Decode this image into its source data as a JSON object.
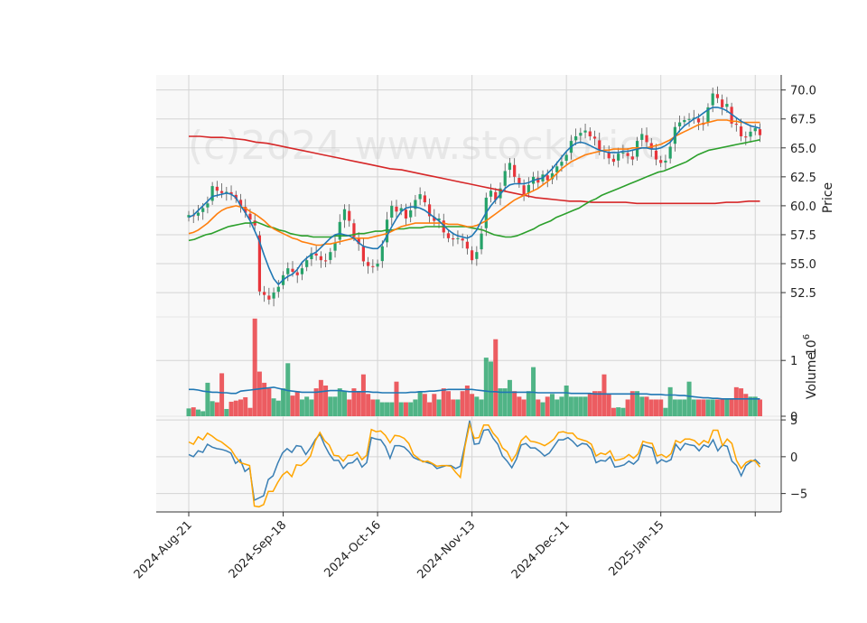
{
  "watermark": "(c)2024 www.stockprice",
  "chart_data": [
    {
      "type": "candlestick",
      "panel": "price",
      "ylabel": "Price",
      "ylim": [
        50.4,
        71.3
      ],
      "yticks": [
        52.5,
        55.0,
        57.5,
        60.0,
        62.5,
        65.0,
        67.5,
        70.0
      ],
      "ytick_labels": [
        "52.5",
        "55.0",
        "57.5",
        "60.0",
        "62.5",
        "65.0",
        "67.5",
        "70.0"
      ],
      "x_range": [
        -7,
        121
      ],
      "xtick_labels": [
        "2024-Aug-21",
        "2024-Sep-18",
        "2024-Oct-16",
        "2024-Nov-13",
        "2024-Dec-11",
        "2025-Jan-15",
        ""
      ],
      "xtick_positions": [
        0,
        20,
        40,
        60,
        80,
        100,
        120
      ],
      "grid": true,
      "colors": {
        "up": "#26a269",
        "down": "#e8353b",
        "ma_fast": "#1f77b4",
        "ma_mid": "#ff7f0e",
        "ma_slow": "#2ca02c",
        "ma_long": "#d62728"
      },
      "close": [
        59.2,
        59.1,
        59.4,
        59.8,
        60.2,
        61.7,
        61.3,
        61.1,
        61.2,
        61.0,
        60.6,
        60.0,
        59.4,
        58.8,
        58.3,
        52.6,
        52.3,
        51.9,
        52.5,
        53.0,
        54.0,
        54.6,
        54.3,
        54.0,
        54.6,
        55.3,
        55.9,
        55.7,
        55.3,
        55.2,
        56.0,
        56.8,
        58.6,
        59.7,
        58.7,
        57.3,
        56.7,
        55.2,
        54.8,
        54.7,
        55.0,
        56.5,
        58.8,
        60.0,
        59.5,
        59.8,
        58.9,
        59.6,
        60.5,
        61.0,
        60.3,
        59.1,
        58.7,
        58.9,
        57.7,
        57.2,
        57.1,
        57.2,
        57.0,
        56.3,
        55.3,
        56.0,
        57.6,
        60.7,
        61.3,
        60.5,
        61.5,
        63.0,
        63.7,
        62.5,
        61.9,
        61.0,
        61.8,
        62.5,
        62.0,
        62.7,
        62.2,
        62.8,
        63.4,
        63.8,
        64.4,
        65.6,
        66.0,
        66.3,
        66.5,
        66.0,
        65.8,
        64.8,
        64.7,
        64.1,
        63.8,
        64.5,
        64.6,
        64.3,
        64.0,
        65.6,
        66.2,
        65.5,
        64.9,
        64.0,
        63.7,
        63.9,
        65.1,
        66.8,
        67.2,
        67.4,
        67.5,
        67.6,
        67.2,
        67.0,
        68.5,
        69.7,
        69.3,
        68.5,
        68.8,
        67.1,
        67.0,
        66.0,
        65.9,
        66.4,
        66.7,
        66.1
      ],
      "ma_fast": [
        59.0,
        59.2,
        59.6,
        60.0,
        60.4,
        60.8,
        60.9,
        61.0,
        61.1,
        61.0,
        60.7,
        60.0,
        59.4,
        58.7,
        57.8,
        56.9,
        55.7,
        54.6,
        53.7,
        53.2,
        53.6,
        53.9,
        54.1,
        54.5,
        55.1,
        55.5,
        55.8,
        56.0,
        56.4,
        56.8,
        57.2,
        57.5,
        57.6,
        57.5,
        57.4,
        57.2,
        56.8,
        56.5,
        56.4,
        56.3,
        56.3,
        56.7,
        57.4,
        58.2,
        58.9,
        59.5,
        59.8,
        59.9,
        59.9,
        59.8,
        59.6,
        59.3,
        59.0,
        58.7,
        58.3,
        57.9,
        57.6,
        57.4,
        57.3,
        57.2,
        57.4,
        57.9,
        58.7,
        59.4,
        60.0,
        60.5,
        61.0,
        61.5,
        61.8,
        61.9,
        61.9,
        61.9,
        62.0,
        62.2,
        62.3,
        62.4,
        62.8,
        63.2,
        63.7,
        64.2,
        64.7,
        65.1,
        65.4,
        65.5,
        65.4,
        65.2,
        65.0,
        64.8,
        64.7,
        64.6,
        64.6,
        64.6,
        64.7,
        64.7,
        64.8,
        64.9,
        65.0,
        65.0,
        64.9,
        64.9,
        65.0,
        65.2,
        65.5,
        66.0,
        66.5,
        66.9,
        67.2,
        67.5,
        67.7,
        68.0,
        68.3,
        68.5,
        68.5,
        68.4,
        68.2,
        67.9,
        67.6,
        67.3,
        67.1,
        66.9,
        66.8,
        66.7
      ],
      "ma_mid": [
        57.6,
        57.7,
        57.9,
        58.2,
        58.5,
        58.9,
        59.3,
        59.6,
        59.8,
        59.9,
        60.0,
        59.9,
        59.8,
        59.5,
        59.3,
        59.0,
        58.7,
        58.3,
        58.0,
        57.8,
        57.6,
        57.4,
        57.2,
        57.1,
        56.9,
        56.8,
        56.7,
        56.6,
        56.6,
        56.7,
        56.7,
        56.8,
        56.9,
        57.0,
        57.1,
        57.2,
        57.2,
        57.2,
        57.2,
        57.3,
        57.4,
        57.5,
        57.6,
        57.8,
        58.0,
        58.2,
        58.3,
        58.4,
        58.5,
        58.5,
        58.5,
        58.5,
        58.5,
        58.5,
        58.5,
        58.4,
        58.4,
        58.4,
        58.3,
        58.2,
        58.2,
        58.3,
        58.5,
        58.7,
        59.0,
        59.3,
        59.6,
        59.9,
        60.2,
        60.5,
        60.7,
        60.9,
        61.1,
        61.3,
        61.5,
        61.8,
        62.1,
        62.4,
        62.8,
        63.2,
        63.5,
        63.8,
        64.0,
        64.2,
        64.4,
        64.5,
        64.6,
        64.7,
        64.8,
        64.8,
        64.9,
        64.9,
        64.9,
        64.9,
        65.0,
        65.0,
        65.0,
        65.0,
        65.1,
        65.2,
        65.3,
        65.5,
        65.7,
        66.0,
        66.2,
        66.4,
        66.6,
        66.8,
        67.0,
        67.1,
        67.2,
        67.3,
        67.4,
        67.4,
        67.4,
        67.3,
        67.3,
        67.2,
        67.2,
        67.2,
        67.2,
        67.2
      ],
      "ma_slow": [
        57.0,
        57.1,
        57.3,
        57.5,
        57.6,
        57.8,
        58.0,
        58.2,
        58.3,
        58.4,
        58.5,
        58.5,
        58.6,
        58.4,
        58.2,
        58.1,
        57.9,
        57.8,
        57.6,
        57.5,
        57.4,
        57.4,
        57.3,
        57.3,
        57.3,
        57.3,
        57.4,
        57.4,
        57.4,
        57.5,
        57.6,
        57.6,
        57.7,
        57.8,
        57.8,
        57.9,
        57.9,
        58.0,
        58.0,
        58.1,
        58.1,
        58.1,
        58.2,
        58.2,
        58.2,
        58.2,
        58.2,
        58.2,
        58.2,
        58.2,
        58.1,
        58.0,
        57.9,
        57.7,
        57.5,
        57.4,
        57.3,
        57.3,
        57.4,
        57.6,
        57.8,
        58.0,
        58.3,
        58.5,
        58.7,
        59.0,
        59.2,
        59.4,
        59.6,
        59.8,
        60.1,
        60.4,
        60.6,
        60.9,
        61.1,
        61.3,
        61.5,
        61.7,
        61.9,
        62.1,
        62.3,
        62.5,
        62.7,
        62.9,
        63.0,
        63.2,
        63.4,
        63.6,
        63.8,
        64.1,
        64.4,
        64.6,
        64.8,
        64.9,
        65.0,
        65.1,
        65.2,
        65.3,
        65.4,
        65.5,
        65.6,
        65.7
      ],
      "ma_long": [
        66.0,
        66.0,
        65.9,
        65.9,
        65.8,
        65.7,
        65.5,
        65.4,
        65.2,
        65.0,
        64.8,
        64.6,
        64.4,
        64.2,
        64.0,
        63.8,
        63.6,
        63.4,
        63.2,
        63.1,
        62.9,
        62.7,
        62.5,
        62.3,
        62.1,
        61.9,
        61.7,
        61.5,
        61.3,
        61.1,
        60.9,
        60.7,
        60.6,
        60.5,
        60.4,
        60.4,
        60.3,
        60.3,
        60.3,
        60.3,
        60.2,
        60.2,
        60.2,
        60.2,
        60.2,
        60.2,
        60.2,
        60.2,
        60.3,
        60.3,
        60.4,
        60.4
      ]
    },
    {
      "type": "bar",
      "panel": "volume",
      "ylabel": "Volume",
      "scale_label": "10^6",
      "ylim": [
        0,
        1.78
      ],
      "yticks": [
        0,
        1
      ],
      "ytick_labels": [
        "0",
        "1"
      ],
      "volume": [
        0.14,
        0.16,
        0.12,
        0.09,
        0.6,
        0.27,
        0.25,
        0.77,
        0.13,
        0.26,
        0.28,
        0.3,
        0.34,
        0.15,
        1.75,
        0.8,
        0.6,
        0.5,
        0.32,
        0.28,
        0.5,
        0.95,
        0.37,
        0.45,
        0.3,
        0.35,
        0.3,
        0.5,
        0.65,
        0.55,
        0.35,
        0.35,
        0.5,
        0.45,
        0.3,
        0.5,
        0.45,
        0.75,
        0.4,
        0.3,
        0.3,
        0.25,
        0.25,
        0.25,
        0.62,
        0.25,
        0.25,
        0.25,
        0.3,
        0.45,
        0.4,
        0.25,
        0.4,
        0.3,
        0.5,
        0.45,
        0.3,
        0.3,
        0.45,
        0.55,
        0.4,
        0.35,
        0.3,
        1.05,
        0.98,
        1.38,
        0.5,
        0.5,
        0.65,
        0.45,
        0.35,
        0.3,
        0.45,
        0.88,
        0.3,
        0.25,
        0.35,
        0.4,
        0.3,
        0.35,
        0.55,
        0.35,
        0.35,
        0.35,
        0.35,
        0.4,
        0.45,
        0.45,
        0.75,
        0.4,
        0.15,
        0.16,
        0.15,
        0.3,
        0.45,
        0.45,
        0.35,
        0.35,
        0.3,
        0.3,
        0.3,
        0.15,
        0.52,
        0.3,
        0.3,
        0.3,
        0.62,
        0.3,
        0.3,
        0.3,
        0.3,
        0.3,
        0.3,
        0.3,
        0.3,
        0.3,
        0.52,
        0.5,
        0.4,
        0.35,
        0.35,
        0.3
      ],
      "volume_avg": [
        0.48,
        0.48,
        0.47,
        0.45,
        0.44,
        0.43,
        0.43,
        0.42,
        0.42,
        0.41,
        0.41,
        0.45,
        0.46,
        0.47,
        0.48,
        0.49,
        0.5,
        0.51,
        0.52,
        0.5,
        0.48,
        0.46,
        0.45,
        0.44,
        0.43,
        0.43,
        0.43,
        0.43,
        0.44,
        0.45,
        0.46,
        0.46,
        0.46,
        0.45,
        0.44,
        0.44,
        0.44,
        0.44,
        0.44,
        0.43,
        0.43,
        0.42,
        0.42,
        0.42,
        0.42,
        0.42,
        0.42,
        0.43,
        0.43,
        0.44,
        0.44,
        0.45,
        0.45,
        0.46,
        0.47,
        0.48,
        0.48,
        0.48,
        0.48,
        0.48,
        0.48,
        0.47,
        0.46,
        0.45,
        0.44,
        0.44,
        0.43,
        0.43,
        0.43,
        0.43,
        0.43,
        0.43,
        0.43,
        0.43,
        0.42,
        0.42,
        0.42,
        0.42,
        0.42,
        0.42,
        0.42,
        0.41,
        0.41,
        0.41,
        0.41,
        0.41,
        0.4,
        0.4,
        0.4,
        0.4,
        0.4,
        0.4,
        0.4,
        0.4,
        0.4,
        0.4,
        0.4,
        0.4,
        0.39,
        0.39,
        0.39,
        0.38,
        0.38,
        0.38,
        0.37,
        0.37,
        0.36,
        0.35,
        0.34,
        0.33,
        0.33,
        0.32,
        0.32,
        0.31,
        0.31,
        0.31,
        0.31,
        0.31,
        0.31,
        0.31,
        0.31,
        0.31
      ],
      "colors": {
        "up": "#26a269",
        "down": "#e8353b",
        "avg": "#1f77b4"
      }
    },
    {
      "type": "line",
      "panel": "oscillator",
      "ylim": [
        -7.5,
        5.5
      ],
      "yticks": [
        -5,
        0,
        5
      ],
      "ytick_labels": [
        "−5",
        "0",
        "5"
      ],
      "series": [
        {
          "color": "#3a7fb4",
          "values": [
            0.3,
            0.0,
            0.8,
            0.6,
            1.7,
            1.3,
            1.1,
            1.0,
            0.8,
            0.5,
            -0.9,
            -0.4,
            -2.0,
            -1.5,
            -5.9,
            -5.6,
            -5.3,
            -3.1,
            -2.6,
            -0.9,
            0.5,
            1.1,
            0.6,
            1.5,
            1.4,
            0.3,
            1.2,
            2.3,
            3.1,
            1.6,
            0.4,
            -0.5,
            -0.5,
            -1.6,
            -0.9,
            -0.8,
            -0.2,
            -1.4,
            -0.8,
            2.6,
            2.4,
            2.3,
            1.4,
            -0.2,
            1.5,
            1.5,
            1.3,
            0.7,
            -0.1,
            -0.4,
            -0.6,
            -0.8,
            -1.0,
            -1.6,
            -1.4,
            -1.2,
            -1.2,
            -1.6,
            -1.3,
            1.7,
            4.9,
            1.7,
            1.8,
            3.6,
            3.7,
            2.5,
            1.7,
            0.1,
            -0.6,
            -1.5,
            -0.3,
            1.6,
            1.8,
            1.2,
            1.2,
            0.7,
            0.1,
            0.5,
            1.4,
            2.3,
            2.3,
            2.6,
            2.1,
            1.4,
            1.8,
            1.7,
            1.0,
            -0.8,
            -0.5,
            -0.6,
            0.0,
            -1.4,
            -1.3,
            -1.1,
            -0.6,
            -1.0,
            -0.4,
            1.6,
            1.4,
            1.2,
            -0.9,
            -0.4,
            -0.7,
            -0.4,
            1.7,
            0.9,
            1.8,
            1.6,
            1.5,
            0.8,
            1.6,
            1.3,
            2.3,
            0.8,
            1.6,
            1.4,
            -0.6,
            -1.2,
            -2.6,
            -1.2,
            -0.7,
            -0.4,
            -1.0
          ]
        },
        {
          "color": "#ffa500",
          "values": [
            2.0,
            1.7,
            2.7,
            2.3,
            3.2,
            2.8,
            2.3,
            2.0,
            1.5,
            1.0,
            0.0,
            -0.8,
            -1.0,
            -1.2,
            -6.7,
            -6.8,
            -6.5,
            -4.7,
            -4.7,
            -3.5,
            -2.5,
            -2.0,
            -2.7,
            -1.1,
            -1.2,
            -0.7,
            0.1,
            2.1,
            3.3,
            2.2,
            1.6,
            0.2,
            0.1,
            -0.6,
            0.2,
            0.2,
            0.6,
            -0.4,
            0.2,
            3.7,
            3.4,
            3.5,
            2.9,
            1.9,
            2.9,
            2.8,
            2.5,
            1.8,
            0.3,
            -0.2,
            -0.7,
            -0.6,
            -0.9,
            -1.3,
            -1.2,
            -1.2,
            -1.3,
            -2.1,
            -2.8,
            1.4,
            4.4,
            2.5,
            2.6,
            4.3,
            4.3,
            3.2,
            2.5,
            1.2,
            0.7,
            -0.6,
            0.4,
            2.2,
            2.8,
            2.1,
            2.0,
            1.8,
            1.5,
            1.9,
            2.4,
            3.3,
            3.4,
            3.2,
            3.2,
            2.5,
            2.3,
            2.1,
            1.7,
            0.1,
            0.5,
            0.3,
            0.8,
            -0.5,
            -0.4,
            -0.2,
            0.3,
            -0.2,
            0.4,
            2.1,
            1.9,
            1.8,
            0.1,
            0.3,
            -0.1,
            0.4,
            2.2,
            1.9,
            2.4,
            2.4,
            2.2,
            1.6,
            2.2,
            1.9,
            3.6,
            3.6,
            1.5,
            2.4,
            1.8,
            -0.5,
            -1.6,
            -0.8,
            -0.5,
            -0.6,
            -1.4
          ]
        }
      ]
    }
  ]
}
